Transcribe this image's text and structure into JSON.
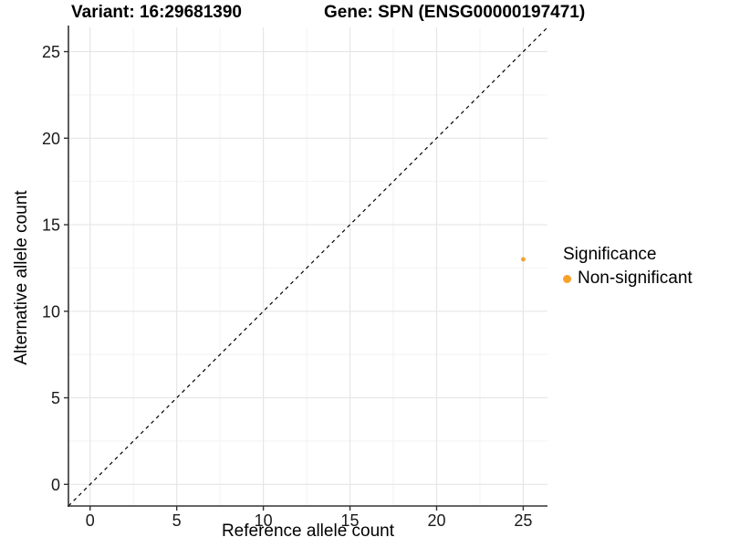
{
  "chart_data": {
    "type": "scatter",
    "title_variant": "Variant: 16:29681390",
    "title_gene": "Gene: SPN (ENSG00000197471)",
    "xlabel": "Reference allele count",
    "ylabel": "Alternative allele count",
    "xlim": [
      -1.25,
      26.4
    ],
    "ylim": [
      -1.25,
      26.4
    ],
    "xticks": [
      0,
      5,
      10,
      15,
      20,
      25
    ],
    "yticks": [
      0,
      5,
      10,
      15,
      20,
      25
    ],
    "xminor": [
      2.5,
      7.5,
      12.5,
      17.5,
      22.5
    ],
    "yminor": [
      2.5,
      7.5,
      12.5,
      17.5,
      22.5
    ],
    "grid": true,
    "points": [
      {
        "x": 25,
        "y": 13,
        "significance": "Non-significant"
      }
    ],
    "identity_line": {
      "slope": 1,
      "intercept": 0,
      "style": "dashed",
      "color": "#000000"
    },
    "legend": {
      "title": "Significance",
      "position": "right",
      "entries": [
        {
          "label": "Non-significant",
          "color": "#F9A02B"
        }
      ]
    },
    "colors": {
      "point": "#F9A02B",
      "grid_major": "#E6E6E6",
      "grid_minor": "#F2F2F2",
      "axis_line": "#333333",
      "tick_text": "#1a1a1a"
    }
  }
}
